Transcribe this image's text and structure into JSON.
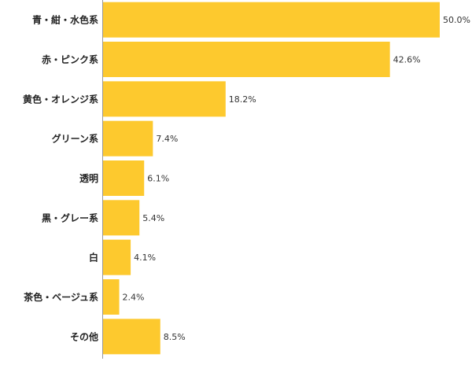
{
  "chart_data": {
    "type": "bar",
    "orientation": "horizontal",
    "color": "#fdc92e",
    "categories": [
      "青・紺・水色系",
      "赤・ピンク系",
      "黄色・オレンジ系",
      "グリーン系",
      "透明",
      "黒・グレー系",
      "白",
      "茶色・ベージュ系",
      "その他"
    ],
    "values": [
      50.0,
      42.6,
      18.2,
      7.4,
      6.1,
      5.4,
      4.1,
      2.4,
      8.5
    ],
    "value_labels": [
      "50.0%",
      "42.6%",
      "18.2%",
      "7.4%",
      "6.1%",
      "5.4%",
      "4.1%",
      "2.4%",
      "8.5%"
    ]
  }
}
